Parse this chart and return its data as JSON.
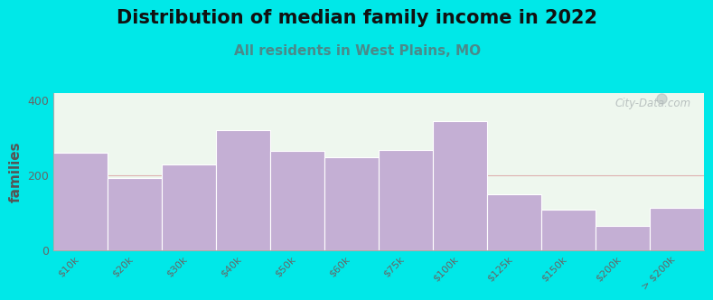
{
  "title": "Distribution of median family income in 2022",
  "subtitle": "All residents in West Plains, MO",
  "ylabel": "families",
  "categories": [
    "$10k",
    "$20k",
    "$30k",
    "$40k",
    "$50k",
    "$60k",
    "$75k",
    "$100k",
    "$125k",
    "$150k",
    "$200k",
    "> $200k"
  ],
  "values": [
    260,
    193,
    228,
    320,
    265,
    248,
    268,
    345,
    148,
    108,
    65,
    113
  ],
  "bar_color": "#c4afd4",
  "bar_edgecolor": "#b09ac0",
  "background_outer": "#00e8e8",
  "background_plot": "#eef7ee",
  "ylim": [
    0,
    420
  ],
  "yticks": [
    0,
    200,
    400
  ],
  "title_fontsize": 15,
  "subtitle_fontsize": 11,
  "subtitle_color": "#4a8a8a",
  "ylabel_fontsize": 11,
  "watermark_text": "City-Data.com",
  "watermark_color": "#b0b8b8",
  "tick_label_color": "#666666",
  "spine_color": "#aaaaaa",
  "hline_color": "#ddaaaa",
  "hline_y": 200
}
